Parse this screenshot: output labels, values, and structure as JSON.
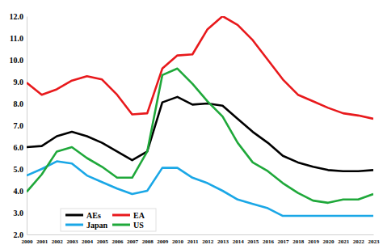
{
  "chart_data": {
    "type": "line",
    "x": [
      2000,
      2001,
      2002,
      2003,
      2004,
      2005,
      2006,
      2007,
      2008,
      2009,
      2010,
      2011,
      2012,
      2013,
      2014,
      2015,
      2016,
      2017,
      2018,
      2019,
      2020,
      2021,
      2022,
      2023
    ],
    "xlim": [
      2000,
      2023
    ],
    "xticks": [
      2000,
      2001,
      2002,
      2003,
      2004,
      2005,
      2006,
      2007,
      2008,
      2009,
      2010,
      2011,
      2012,
      2013,
      2014,
      2015,
      2016,
      2017,
      2018,
      2019,
      2020,
      2021,
      2022,
      2023
    ],
    "ylim": [
      2,
      12
    ],
    "yticks": [
      {
        "value": 2,
        "label": "2.0"
      },
      {
        "value": 3,
        "label": "3.0"
      },
      {
        "value": 4,
        "label": "4.0"
      },
      {
        "value": 5,
        "label": "5.0"
      },
      {
        "value": 6,
        "label": "6.0"
      },
      {
        "value": 7,
        "label": "7.0"
      },
      {
        "value": 8,
        "label": "8.0"
      },
      {
        "value": 9,
        "label": "9.0"
      },
      {
        "value": 10,
        "label": "10.0"
      },
      {
        "value": 11,
        "label": "11.0"
      },
      {
        "value": 12,
        "label": "12.0"
      }
    ],
    "legend": "lower left",
    "series": [
      {
        "name": "AEs",
        "color": "#000000",
        "values": [
          6.0,
          6.05,
          6.5,
          6.7,
          6.5,
          6.2,
          5.8,
          5.4,
          5.8,
          8.05,
          8.3,
          7.95,
          8.0,
          7.9,
          7.3,
          6.7,
          6.2,
          5.6,
          5.3,
          5.1,
          4.95,
          4.9,
          4.9,
          4.95
        ]
      },
      {
        "name": "EA",
        "color": "#e8191c",
        "values": [
          8.95,
          8.4,
          8.65,
          9.05,
          9.25,
          9.1,
          8.4,
          7.5,
          7.55,
          9.6,
          10.2,
          10.25,
          11.4,
          12.0,
          11.6,
          10.9,
          10.0,
          9.1,
          8.4,
          8.1,
          7.8,
          7.55,
          7.45,
          7.3
        ]
      },
      {
        "name": "Japan",
        "color": "#1aa7e6",
        "values": [
          4.7,
          5.0,
          5.35,
          5.25,
          4.7,
          4.4,
          4.1,
          3.85,
          4.0,
          5.05,
          5.05,
          4.6,
          4.35,
          4.0,
          3.6,
          3.4,
          3.2,
          2.85,
          2.85,
          2.85,
          2.85,
          2.85,
          2.85,
          2.85
        ]
      },
      {
        "name": "US",
        "color": "#1fa83a",
        "values": [
          3.95,
          4.75,
          5.8,
          6.0,
          5.5,
          5.1,
          4.6,
          4.6,
          5.8,
          9.3,
          9.6,
          8.9,
          8.1,
          7.4,
          6.2,
          5.3,
          4.9,
          4.35,
          3.9,
          3.55,
          3.45,
          3.6,
          3.6,
          3.85
        ]
      }
    ]
  }
}
